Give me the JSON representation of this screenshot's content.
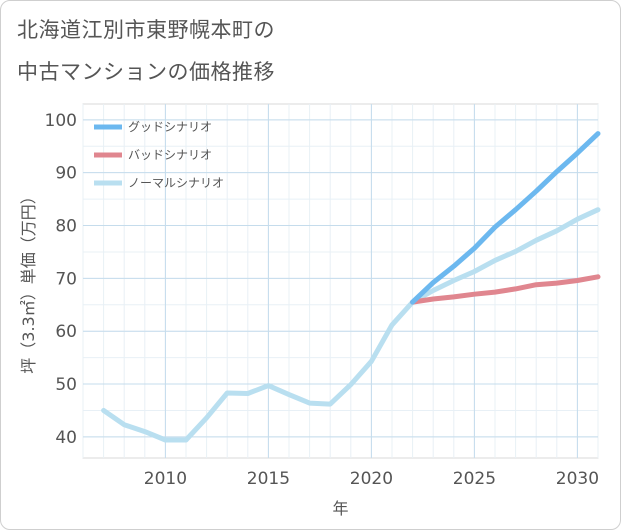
{
  "title_lines": [
    "北海道江別市東野幌本町の",
    "中古マンションの価格推移"
  ],
  "chart_data": {
    "type": "line",
    "title": "北海道江別市東野幌本町の中古マンションの価格推移",
    "xlabel": "年",
    "ylabel": "坪（3.3㎡）単価（万円）",
    "xlim": [
      2006,
      2031
    ],
    "ylim": [
      36,
      103
    ],
    "x_ticks": [
      2010,
      2015,
      2020,
      2025,
      2030
    ],
    "y_ticks": [
      40,
      50,
      60,
      70,
      80,
      90,
      100
    ],
    "grid": true,
    "legend_position": "top-left",
    "series": [
      {
        "name": "グッドシナリオ",
        "color": "#6cb8ef",
        "x": [
          2022,
          2023,
          2024,
          2025,
          2026,
          2027,
          2028,
          2029,
          2030,
          2031
        ],
        "y": [
          65.5,
          69.2,
          72.3,
          75.7,
          79.7,
          83.0,
          86.5,
          90.2,
          93.7,
          97.4
        ]
      },
      {
        "name": "バッドシナリオ",
        "color": "#e0868f",
        "x": [
          2022,
          2023,
          2024,
          2025,
          2026,
          2027,
          2028,
          2029,
          2030,
          2031
        ],
        "y": [
          65.5,
          66.1,
          66.5,
          67.0,
          67.4,
          68.0,
          68.8,
          69.1,
          69.6,
          70.3
        ]
      },
      {
        "name": "ノーマルシナリオ",
        "color": "#b9dff0",
        "x": [
          2007,
          2008,
          2009,
          2010,
          2011,
          2012,
          2013,
          2014,
          2015,
          2016,
          2017,
          2018,
          2019,
          2020,
          2021,
          2022,
          2023,
          2024,
          2025,
          2026,
          2027,
          2028,
          2029,
          2030,
          2031
        ],
        "y": [
          45.0,
          42.3,
          41.0,
          39.4,
          39.4,
          43.6,
          48.3,
          48.2,
          49.7,
          48.0,
          46.4,
          46.2,
          49.9,
          54.3,
          61.2,
          65.5,
          67.7,
          69.6,
          71.3,
          73.4,
          75.1,
          77.2,
          79.0,
          81.2,
          83.0
        ]
      }
    ]
  }
}
